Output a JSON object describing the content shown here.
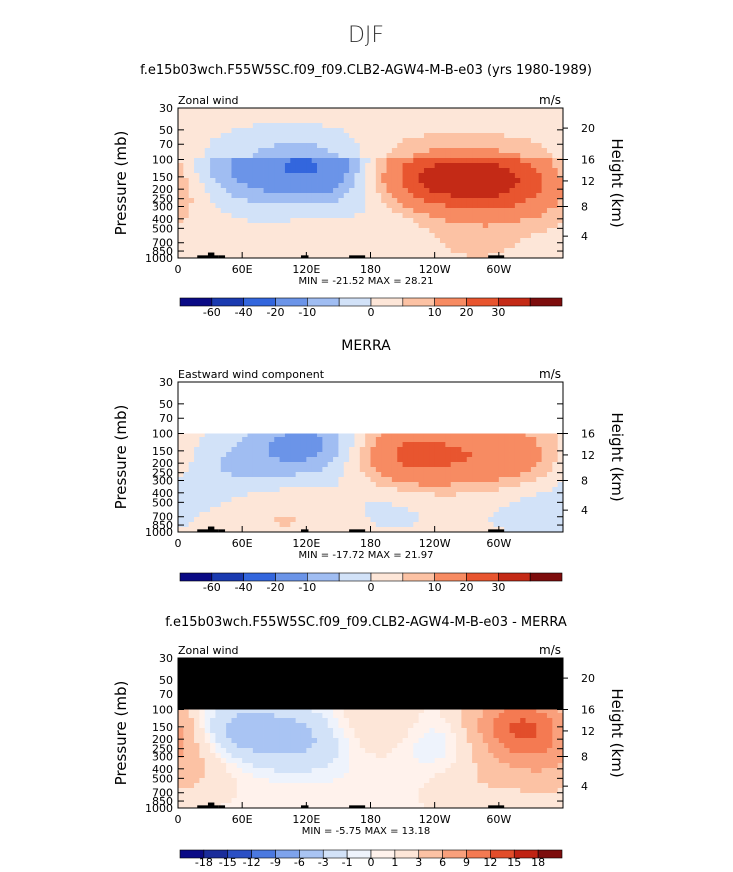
{
  "page_title": "DJF",
  "chart_data": [
    {
      "type": "heatmap",
      "title": "f.e15b03wch.F55W5SC.f09_f09.CLB2-AGW4-M-B-e03 (yrs 1980-1989)",
      "left_label": "Zonal wind",
      "right_label": "m/s",
      "ylabel": "Pressure (mb)",
      "y2label": "Height (km)",
      "xticks": [
        "0",
        "60E",
        "120E",
        "180",
        "120W",
        "60W"
      ],
      "yticks": [
        "30",
        "50",
        "70",
        "100",
        "150",
        "200",
        "250",
        "300",
        "400",
        "500",
        "700",
        "850",
        "1000"
      ],
      "y2ticks": [
        "20",
        "16",
        "12",
        "8",
        "4"
      ],
      "stats": "MIN = -21.52   MAX =  28.21",
      "colorbar_labels": [
        "-60",
        "-40",
        "-20",
        "-10",
        "0",
        "10",
        "20",
        "30"
      ],
      "data_range": [
        -21.52,
        28.21
      ],
      "features": [
        {
          "lon": 125,
          "p": 120,
          "value": -20
        },
        {
          "lon": 40,
          "p": 170,
          "value": -8
        },
        {
          "lon": 70,
          "p": 90,
          "value": -6
        },
        {
          "lon": 200,
          "p": 300,
          "value": -6
        },
        {
          "lon": 235,
          "p": 160,
          "value": 28
        },
        {
          "lon": 300,
          "p": 160,
          "value": 27
        },
        {
          "lon": 170,
          "p": 700,
          "value": 4
        },
        {
          "lon": 280,
          "p": 700,
          "value": 4
        },
        {
          "lon": 0,
          "p": 220,
          "value": 6
        }
      ]
    },
    {
      "type": "heatmap",
      "title": "MERRA",
      "left_label": "Eastward wind component",
      "right_label": "m/s",
      "ylabel": "Pressure (mb)",
      "y2label": "Height (km)",
      "xticks": [
        "0",
        "60E",
        "120E",
        "180",
        "120W",
        "60W"
      ],
      "yticks": [
        "30",
        "50",
        "70",
        "100",
        "150",
        "200",
        "250",
        "300",
        "400",
        "500",
        "700",
        "850",
        "1000"
      ],
      "y2ticks": [
        "16",
        "12",
        "8",
        "4"
      ],
      "stats": "MIN = -17.72   MAX =  21.97",
      "colorbar_labels": [
        "-60",
        "-40",
        "-20",
        "-10",
        "0",
        "10",
        "20",
        "30"
      ],
      "data_range": [
        -17.72,
        21.97
      ],
      "features": [
        {
          "lon": 120,
          "p": 130,
          "value": -14
        },
        {
          "lon": 45,
          "p": 220,
          "value": -6
        },
        {
          "lon": 220,
          "p": 170,
          "value": 22
        },
        {
          "lon": 305,
          "p": 170,
          "value": 15
        },
        {
          "lon": 100,
          "p": 700,
          "value": 4
        },
        {
          "lon": 200,
          "p": 450,
          "value": -4
        },
        {
          "lon": 330,
          "p": 500,
          "value": -4
        }
      ]
    },
    {
      "type": "heatmap",
      "title": "f.e15b03wch.F55W5SC.f09_f09.CLB2-AGW4-M-B-e03 - MERRA",
      "left_label": "Zonal wind",
      "right_label": "m/s",
      "ylabel": "Pressure (mb)",
      "y2label": "Height (km)",
      "xticks": [
        "0",
        "60E",
        "120E",
        "180",
        "120W",
        "60W"
      ],
      "yticks": [
        "30",
        "50",
        "70",
        "100",
        "150",
        "200",
        "250",
        "300",
        "400",
        "500",
        "700",
        "850",
        "1000"
      ],
      "y2ticks": [
        "20",
        "16",
        "12",
        "8",
        "4"
      ],
      "stats": "MIN =  -5.75   MAX =  13.18",
      "colorbar_labels": [
        "-18",
        "-15",
        "-12",
        "-9",
        "-6",
        "-3",
        "-1",
        "0",
        "1",
        "3",
        "6",
        "9",
        "12",
        "15",
        "18"
      ],
      "data_range": [
        -5.75,
        13.18
      ],
      "features": [
        {
          "lon": 50,
          "p": 170,
          "value": -5
        },
        {
          "lon": 125,
          "p": 200,
          "value": -4
        },
        {
          "lon": 245,
          "p": 200,
          "value": -4
        },
        {
          "lon": 320,
          "p": 150,
          "value": 12
        },
        {
          "lon": 190,
          "p": 160,
          "value": 4
        },
        {
          "lon": 0,
          "p": 350,
          "value": 4
        },
        {
          "lon": 280,
          "p": 500,
          "value": 2
        }
      ]
    }
  ],
  "colors": {
    "scale_12": [
      "#0a0a85",
      "#1a3ab0",
      "#3366dd",
      "#6b94e8",
      "#a0bdf2",
      "#d2e2f8",
      "#fde6d8",
      "#fcc2a4",
      "#f78b62",
      "#e8552f",
      "#c42a16",
      "#7d0d0d"
    ],
    "scale_16": [
      "#0a0a85",
      "#1a2c9a",
      "#2b4fc4",
      "#4b79e0",
      "#7ea3ec",
      "#a9c4f3",
      "#d2e2f8",
      "#eef3fc",
      "#fff2ec",
      "#fde6d8",
      "#fcc2a4",
      "#f9a07c",
      "#f47a52",
      "#e24d2a",
      "#c02313",
      "#7d0d0d"
    ]
  }
}
